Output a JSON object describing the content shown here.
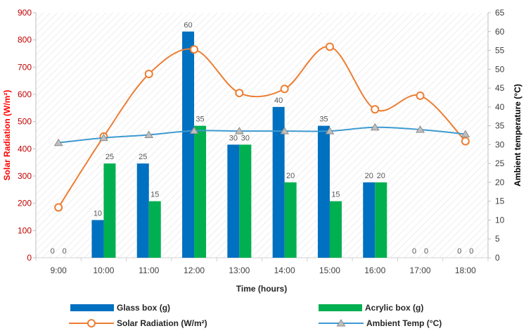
{
  "chart_data": {
    "type": "bar",
    "categories": [
      "9:00",
      "10:00",
      "11:00",
      "12:00",
      "13:00",
      "14:00",
      "15:00",
      "16:00",
      "17:00",
      "18:00"
    ],
    "series": [
      {
        "name": "Glass box (g)",
        "kind": "bar",
        "axis": "right",
        "color": "#0070c0",
        "values": [
          0,
          10,
          25,
          60,
          30,
          40,
          35,
          20,
          0,
          0
        ]
      },
      {
        "name": "Acrylic box (g)",
        "kind": "bar",
        "axis": "right",
        "color": "#00b050",
        "values": [
          0,
          25,
          15,
          35,
          30,
          20,
          15,
          20,
          0,
          0
        ]
      },
      {
        "name": "Solar Radiation (W/m²)",
        "kind": "line",
        "axis": "left",
        "color": "#ed7d31",
        "marker": "circle",
        "values": [
          185,
          445,
          675,
          765,
          605,
          620,
          775,
          545,
          595,
          428
        ]
      },
      {
        "name": "Ambient Temp (°C)",
        "kind": "line",
        "axis": "right",
        "color": "#3d9ad1",
        "marker": "triangle",
        "values": [
          30.5,
          31.8,
          32.6,
          33.7,
          33.6,
          33.6,
          33.6,
          34.6,
          34.0,
          32.8
        ]
      }
    ],
    "xlabel": "Time (hours)",
    "ylabel_left": "Solar Radiation (W/m²)",
    "ylabel_right": "Ambient temperature (°C)",
    "ylim_left": [
      0,
      900
    ],
    "yticks_left": [
      0,
      100,
      200,
      300,
      400,
      500,
      600,
      700,
      800,
      900
    ],
    "ylim_right": [
      0,
      65
    ],
    "yticks_right": [
      0,
      5,
      10,
      15,
      20,
      25,
      30,
      35,
      40,
      45,
      50,
      55,
      60,
      65
    ],
    "grid": false,
    "background": "diagonal hatch",
    "legend_position": "bottom",
    "left_axis_color": "#ff0000"
  }
}
